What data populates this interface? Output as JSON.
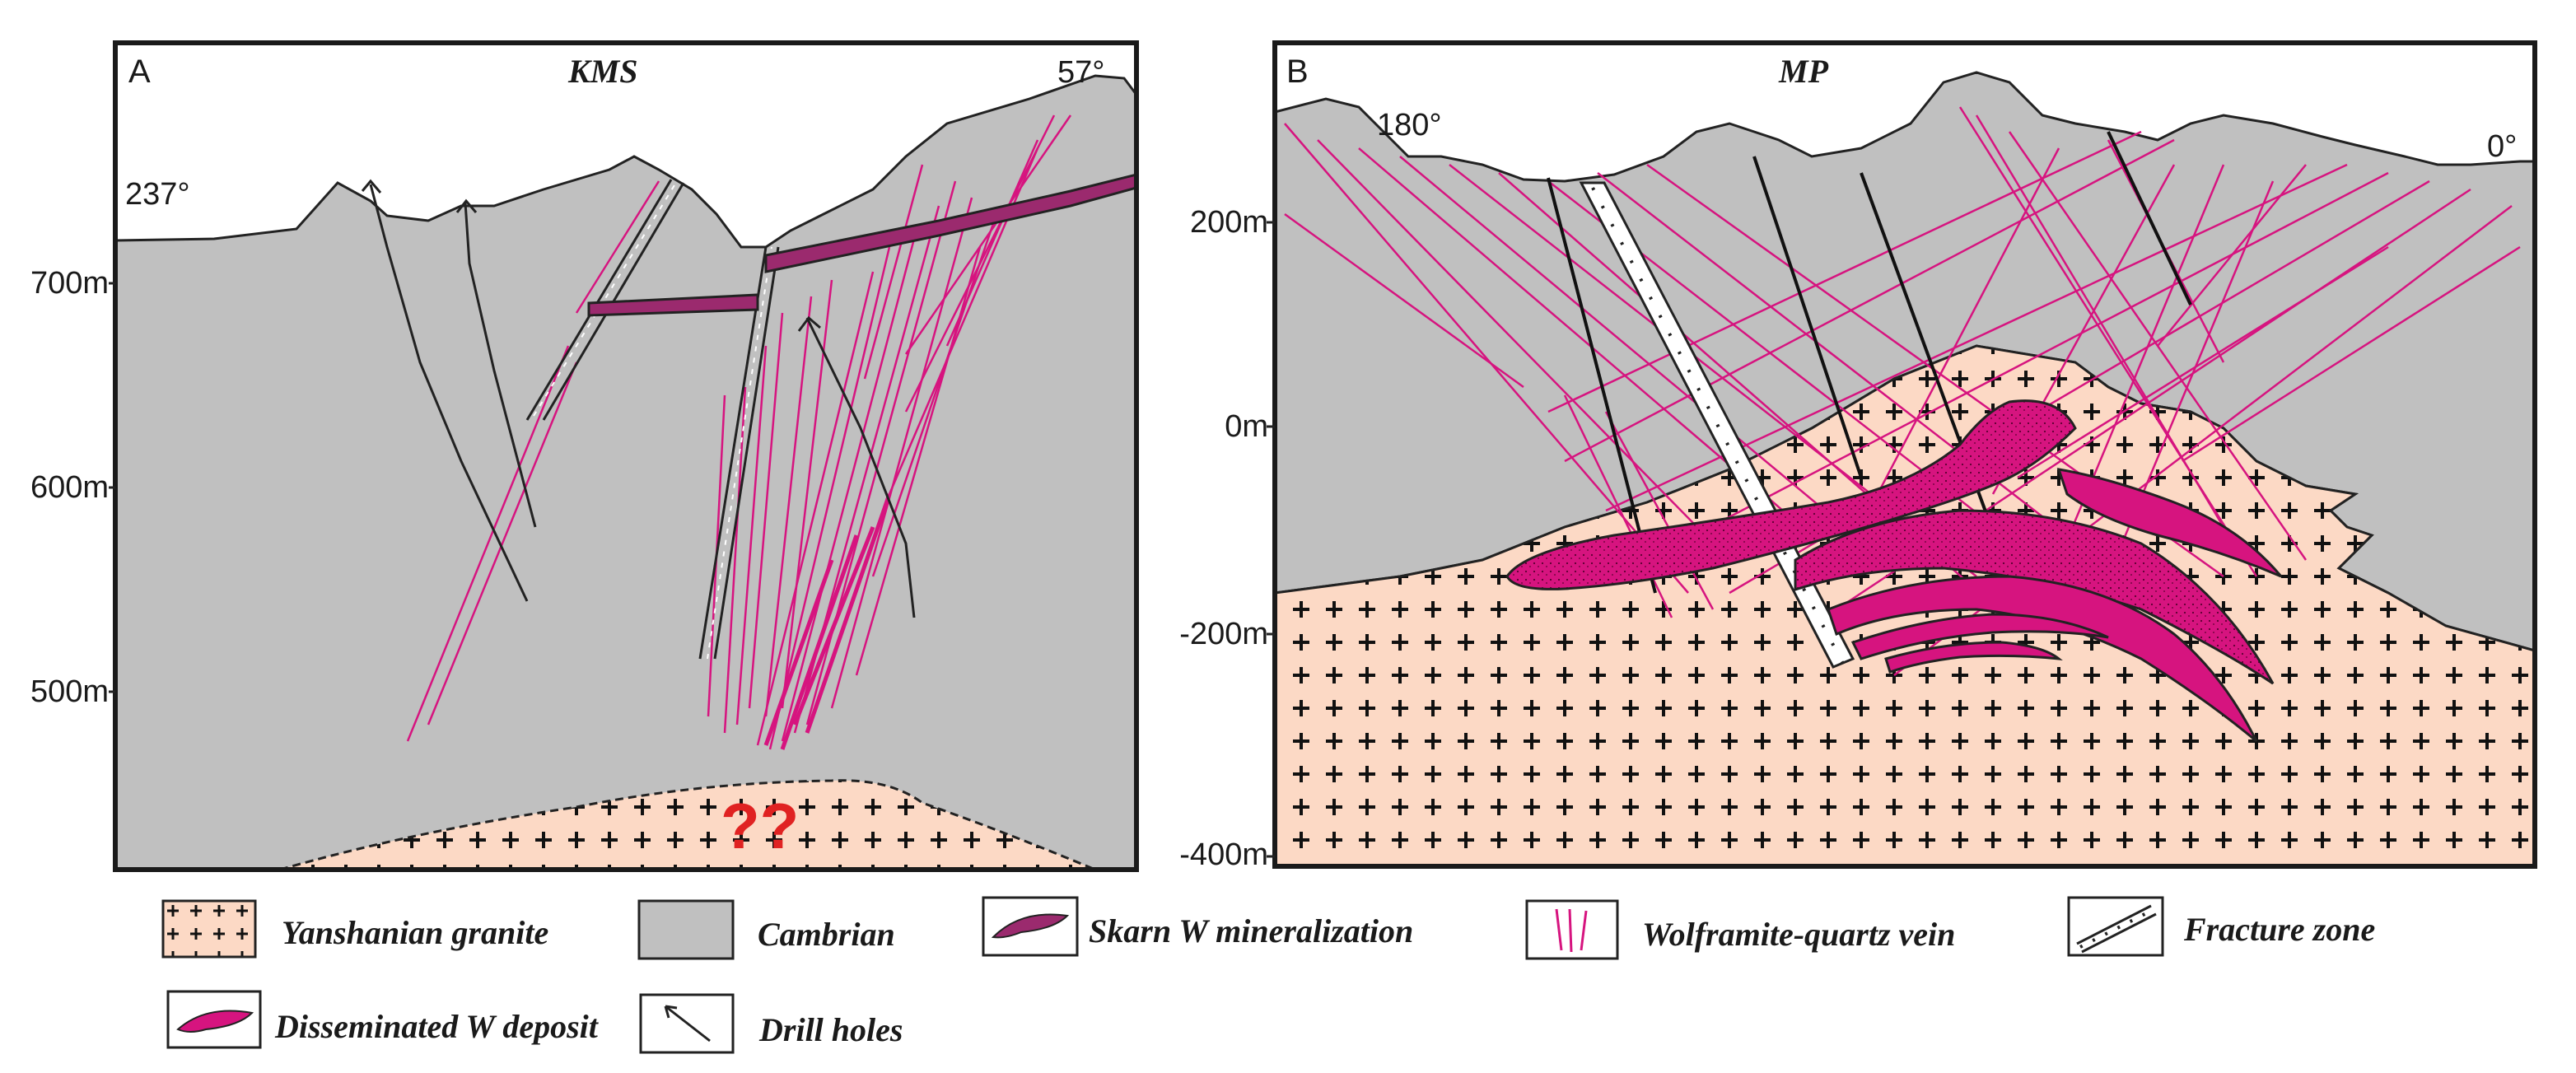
{
  "panel_a": {
    "letter": "A",
    "title": "KMS",
    "azimuth_left": "237°",
    "azimuth_right": "57°",
    "elevations": [
      "700m",
      "600m",
      "500m"
    ],
    "question_marks": "??"
  },
  "panel_b": {
    "letter": "B",
    "title": "MP",
    "azimuth_left": "180°",
    "azimuth_right": "0°",
    "elevations": [
      "200m",
      "0m",
      "-200m",
      "-400m"
    ]
  },
  "legend": {
    "items": [
      {
        "label": "Yanshanian granite"
      },
      {
        "label": "Cambrian"
      },
      {
        "label": "Skarn W  mineralization"
      },
      {
        "label": "Wolframite-quartz vein"
      },
      {
        "label": "Fracture zone"
      },
      {
        "label": "Disseminated W deposit"
      },
      {
        "label": "Drill holes"
      }
    ]
  },
  "colors": {
    "cambrian": "#c0c0c0",
    "granite": "#fcd9c5",
    "ore": "#d6147f",
    "vein": "#d6147f",
    "frame": "#1a1a1a",
    "question": "#e02222"
  }
}
